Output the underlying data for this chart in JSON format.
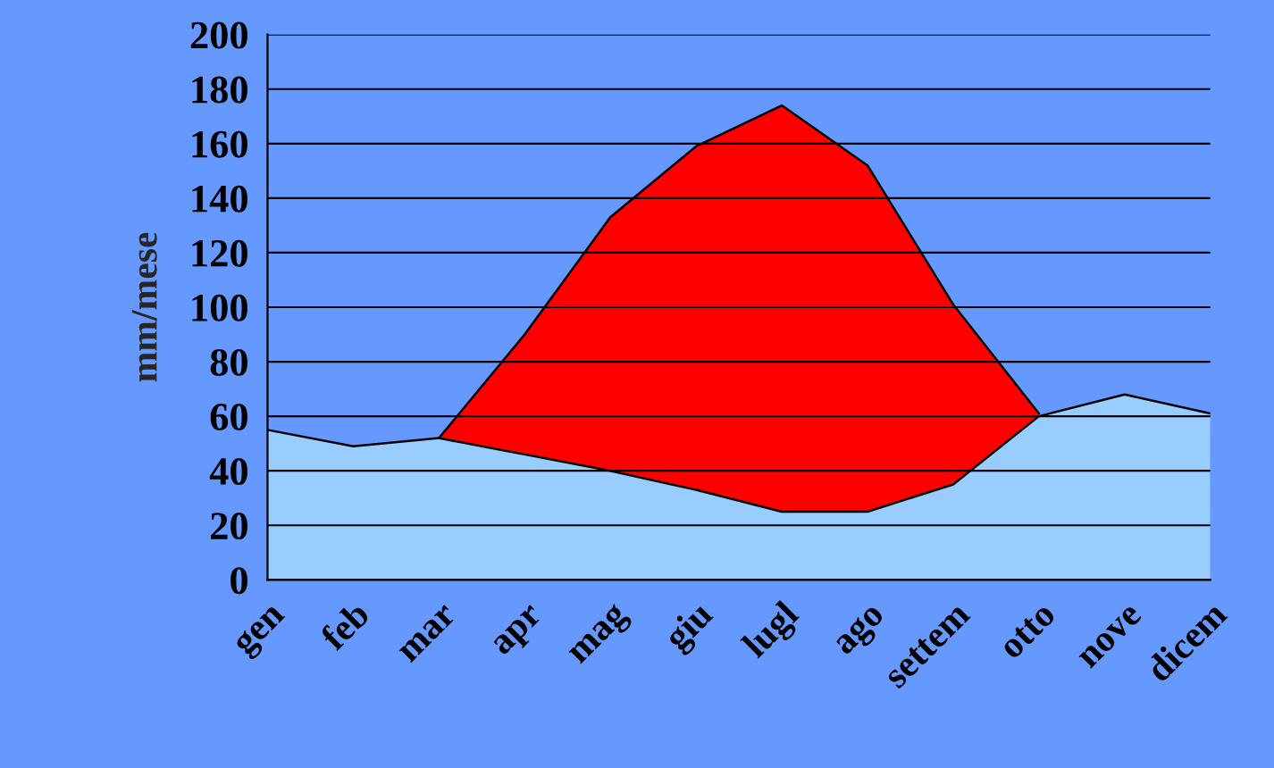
{
  "chart_data": {
    "type": "area",
    "ylabel": "mm/mese",
    "categories": [
      "gen",
      "feb",
      "mar",
      "apr",
      "mag",
      "giu",
      "lugl",
      "ago",
      "settem",
      "otto",
      "nove",
      "dicem"
    ],
    "series": [
      {
        "color": "#ff0000",
        "values": [
          null,
          null,
          52,
          90,
          133,
          159,
          174,
          152,
          101,
          61,
          null,
          null
        ]
      },
      {
        "color": "#99ccff",
        "values": [
          55,
          49,
          52,
          46,
          40,
          33,
          25,
          25,
          35,
          60,
          68,
          61
        ]
      }
    ],
    "ylim": [
      0,
      200
    ],
    "yticks": [
      0,
      20,
      40,
      60,
      80,
      100,
      120,
      140,
      160,
      180,
      200
    ],
    "grid": "y"
  }
}
